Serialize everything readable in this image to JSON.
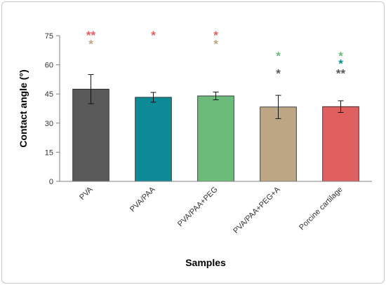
{
  "chart_data": {
    "type": "bar",
    "title": "",
    "xlabel": "Samples",
    "ylabel": "Contact angle (°)",
    "ylim": [
      0,
      75
    ],
    "yticks": [
      0,
      15,
      30,
      45,
      60,
      75
    ],
    "grid": false,
    "categories": [
      "PVA",
      "PVA/PAA",
      "PVA/PAA+PEG",
      "PVA/PAA+PEG+A",
      "Porcine cartilage"
    ],
    "values": [
      47.5,
      43.3,
      44.0,
      38.3,
      38.5
    ],
    "errors": [
      7.5,
      2.5,
      2.0,
      6.0,
      3.0
    ],
    "colors": [
      "#595959",
      "#0e8a96",
      "#6cbb7a",
      "#bca683",
      "#e06060"
    ],
    "significance": [
      {
        "category": "PVA",
        "marks": [
          {
            "symbol": "**",
            "color": "#e06060",
            "value": 76
          },
          {
            "symbol": "*",
            "color": "#bca683",
            "value": 71.5
          }
        ]
      },
      {
        "category": "PVA/PAA",
        "marks": [
          {
            "symbol": "*",
            "color": "#e06060",
            "value": 76
          }
        ]
      },
      {
        "category": "PVA/PAA+PEG",
        "marks": [
          {
            "symbol": "*",
            "color": "#e06060",
            "value": 76
          },
          {
            "symbol": "*",
            "color": "#bca683",
            "value": 71.5
          }
        ]
      },
      {
        "category": "PVA/PAA+PEG+A",
        "marks": [
          {
            "symbol": "*",
            "color": "#6cbb7a",
            "value": 65.5
          },
          {
            "symbol": "*",
            "color": "#595959",
            "value": 56.5
          }
        ]
      },
      {
        "category": "Porcine cartilage",
        "marks": [
          {
            "symbol": "*",
            "color": "#6cbb7a",
            "value": 65.5
          },
          {
            "symbol": "*",
            "color": "#0e8a96",
            "value": 61.5
          },
          {
            "symbol": "**",
            "color": "#595959",
            "value": 56.5
          }
        ]
      }
    ]
  }
}
